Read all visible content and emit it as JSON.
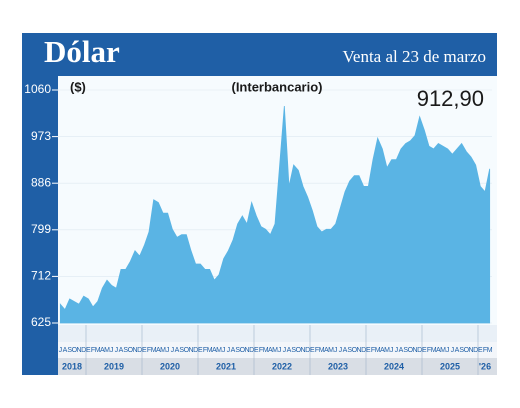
{
  "chart_data": {
    "type": "area",
    "title": "Dólar",
    "subtitle": "Venta al 23 de marzo",
    "annotations": [
      "($)",
      "(Interbancario)",
      "912,90"
    ],
    "color": "#5ab4e4",
    "x": [
      "2018-07",
      "2018-08",
      "2018-09",
      "2018-10",
      "2018-11",
      "2018-12",
      "2019-01",
      "2019-02",
      "2019-03",
      "2019-04",
      "2019-05",
      "2019-06",
      "2019-07",
      "2019-08",
      "2019-09",
      "2019-10",
      "2019-11",
      "2019-12",
      "2020-01",
      "2020-02",
      "2020-03",
      "2020-04",
      "2020-05",
      "2020-06",
      "2020-07",
      "2020-08",
      "2020-09",
      "2020-10",
      "2020-11",
      "2020-12",
      "2021-01",
      "2021-02",
      "2021-03",
      "2021-04",
      "2021-05",
      "2021-06",
      "2021-07",
      "2021-08",
      "2021-09",
      "2021-10",
      "2021-11",
      "2021-12",
      "2022-01",
      "2022-02",
      "2022-03",
      "2022-04",
      "2022-05",
      "2022-06",
      "2022-07",
      "2022-08",
      "2022-09",
      "2022-10",
      "2022-11",
      "2022-12",
      "2023-01",
      "2023-02",
      "2023-03",
      "2023-04",
      "2023-05",
      "2023-06",
      "2023-07",
      "2023-08",
      "2023-09",
      "2023-10",
      "2023-11",
      "2023-12",
      "2024-01",
      "2024-02",
      "2024-03",
      "2024-04",
      "2024-05",
      "2024-06",
      "2024-07",
      "2024-08",
      "2024-09",
      "2024-10",
      "2024-11",
      "2024-12",
      "2025-01",
      "2025-02",
      "2025-03",
      "2025-04",
      "2025-05",
      "2025-06",
      "2025-07",
      "2025-08",
      "2025-09",
      "2025-10",
      "2025-11",
      "2025-12",
      "2026-01",
      "2026-02",
      "2026-03"
    ],
    "values": [
      660,
      650,
      670,
      665,
      660,
      675,
      670,
      655,
      665,
      690,
      705,
      695,
      690,
      725,
      725,
      740,
      760,
      750,
      770,
      795,
      855,
      850,
      830,
      830,
      800,
      785,
      790,
      790,
      760,
      735,
      735,
      725,
      725,
      705,
      715,
      745,
      760,
      780,
      810,
      825,
      810,
      850,
      825,
      805,
      800,
      790,
      810,
      920,
      1030,
      880,
      920,
      910,
      880,
      860,
      835,
      805,
      795,
      800,
      800,
      810,
      840,
      870,
      890,
      900,
      900,
      880,
      880,
      930,
      970,
      950,
      915,
      930,
      930,
      950,
      960,
      965,
      975,
      1010,
      985,
      955,
      950,
      960,
      955,
      950,
      940,
      950,
      960,
      945,
      935,
      920,
      880,
      870,
      912.9
    ],
    "year_labels": [
      "2018",
      "2019",
      "2020",
      "2021",
      "2022",
      "2023",
      "2024",
      "2025",
      "'26"
    ],
    "month_initials": [
      "E",
      "F",
      "M",
      "A",
      "M",
      "J",
      "J",
      "A",
      "S",
      "O",
      "N",
      "D"
    ],
    "ylim": [
      625,
      1060
    ],
    "yticks": [
      625,
      712,
      799,
      886,
      973,
      1060
    ]
  }
}
